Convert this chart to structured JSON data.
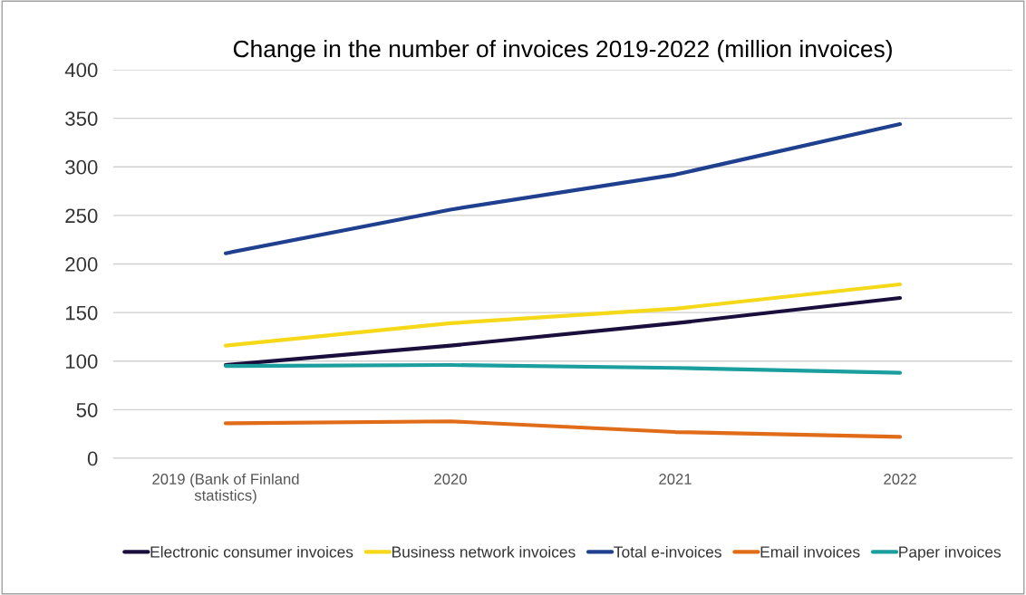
{
  "chart_data": {
    "type": "line",
    "title": "Change in the number of invoices 2019-2022 (million invoices)",
    "categories": [
      "2019 (Bank of Finland\nstatistics)",
      "2020",
      "2021",
      "2022"
    ],
    "series": [
      {
        "name": "Electronic consumer invoices",
        "color": "#1a0f3c",
        "values": [
          96,
          116,
          139,
          165
        ]
      },
      {
        "name": "Business network invoices",
        "color": "#f5d817",
        "values": [
          116,
          139,
          154,
          179
        ]
      },
      {
        "name": "Total e-invoices",
        "color": "#1f3f8f",
        "values": [
          211,
          256,
          292,
          344
        ]
      },
      {
        "name": "Email invoices",
        "color": "#e06c1a",
        "values": [
          36,
          38,
          27,
          22
        ]
      },
      {
        "name": "Paper invoices",
        "color": "#1a9e9e",
        "values": [
          95,
          96,
          93,
          88
        ]
      }
    ],
    "ylim": [
      0,
      400
    ],
    "yticks": [
      0,
      50,
      100,
      150,
      200,
      250,
      300,
      350,
      400
    ],
    "grid": "y",
    "legend": "bottom",
    "marker": "none",
    "line_style": "solid"
  }
}
